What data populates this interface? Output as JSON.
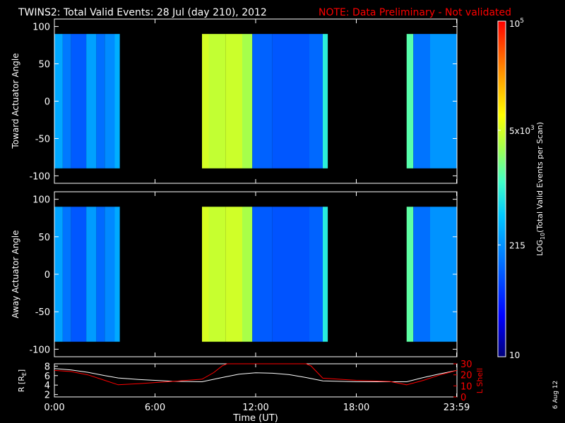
{
  "title": "TWINS2: Total Valid Events: 28 Jul (day 210), 2012",
  "note": "NOTE: Data Preliminary - Not validated",
  "side_date": "6 Aug 12",
  "colors": {
    "background": "#000000",
    "text": "#ffffff",
    "note": "#ff0000",
    "r_line": "#ffffff",
    "lshell_line": "#ff0000"
  },
  "chart_data": [
    {
      "type": "heatmap",
      "ylabel": "Toward Actuator Angle",
      "ylim": [
        -110,
        110
      ],
      "yticks": [
        100,
        50,
        0,
        -50,
        -100
      ],
      "data_y_range": [
        -90,
        90
      ],
      "x_range_hours": [
        0,
        24
      ],
      "columns": [
        {
          "from": 0.0,
          "to": 0.5,
          "value": 300
        },
        {
          "from": 0.5,
          "to": 1.0,
          "value": 150
        },
        {
          "from": 1.0,
          "to": 1.9,
          "value": 100
        },
        {
          "from": 1.9,
          "to": 2.5,
          "value": 270
        },
        {
          "from": 2.5,
          "to": 3.0,
          "value": 130
        },
        {
          "from": 3.0,
          "to": 3.6,
          "value": 200
        },
        {
          "from": 3.6,
          "to": 3.9,
          "value": 330
        },
        {
          "from": 8.8,
          "to": 9.2,
          "value": 5000
        },
        {
          "from": 9.2,
          "to": 10.2,
          "value": 4200
        },
        {
          "from": 10.2,
          "to": 11.2,
          "value": 4600
        },
        {
          "from": 11.2,
          "to": 11.8,
          "value": 3200
        },
        {
          "from": 11.8,
          "to": 13.0,
          "value": 110
        },
        {
          "from": 13.0,
          "to": 15.2,
          "value": 95
        },
        {
          "from": 15.2,
          "to": 16.0,
          "value": 120
        },
        {
          "from": 16.0,
          "to": 16.3,
          "value": 900
        },
        {
          "from": 21.0,
          "to": 21.4,
          "value": 1500
        },
        {
          "from": 21.4,
          "to": 22.4,
          "value": 140
        },
        {
          "from": 22.4,
          "to": 24.0,
          "value": 230
        }
      ]
    },
    {
      "type": "heatmap",
      "ylabel": "Away Actuator Angle",
      "ylim": [
        -110,
        110
      ],
      "yticks": [
        100,
        50,
        0,
        -50,
        -100
      ],
      "data_y_range": [
        -90,
        90
      ],
      "x_range_hours": [
        0,
        24
      ],
      "columns": [
        {
          "from": 0.0,
          "to": 0.5,
          "value": 280
        },
        {
          "from": 0.5,
          "to": 1.0,
          "value": 140
        },
        {
          "from": 1.0,
          "to": 1.9,
          "value": 95
        },
        {
          "from": 1.9,
          "to": 2.5,
          "value": 250
        },
        {
          "from": 2.5,
          "to": 3.0,
          "value": 120
        },
        {
          "from": 3.0,
          "to": 3.6,
          "value": 190
        },
        {
          "from": 3.6,
          "to": 3.9,
          "value": 310
        },
        {
          "from": 8.8,
          "to": 9.2,
          "value": 5200
        },
        {
          "from": 9.2,
          "to": 10.2,
          "value": 4400
        },
        {
          "from": 10.2,
          "to": 11.2,
          "value": 4800
        },
        {
          "from": 11.2,
          "to": 11.8,
          "value": 3300
        },
        {
          "from": 11.8,
          "to": 13.0,
          "value": 100
        },
        {
          "from": 13.0,
          "to": 15.2,
          "value": 90
        },
        {
          "from": 15.2,
          "to": 16.0,
          "value": 110
        },
        {
          "from": 16.0,
          "to": 16.3,
          "value": 850
        },
        {
          "from": 21.0,
          "to": 21.4,
          "value": 1600
        },
        {
          "from": 21.4,
          "to": 22.4,
          "value": 130
        },
        {
          "from": 22.4,
          "to": 24.0,
          "value": 220
        }
      ]
    },
    {
      "type": "line",
      "xlabel": "Time (UT)",
      "xticks": [
        "0:00",
        "6:00",
        "12:00",
        "18:00",
        "23:59"
      ],
      "xtick_hours": [
        0,
        6,
        12,
        18,
        23.98
      ],
      "left_axis": {
        "label": "R [R",
        "label_sub": "E",
        "label_end": "]",
        "ylim": [
          1.5,
          8.5
        ],
        "ticks": [
          2,
          4,
          6,
          8
        ]
      },
      "right_axis": {
        "label": "L Shell",
        "ylim": [
          0,
          30
        ],
        "ticks": [
          0,
          10,
          20,
          30
        ]
      },
      "series": [
        {
          "axis": "left",
          "x": [
            0,
            1,
            2,
            3,
            3.8,
            5,
            6,
            7,
            8.8,
            10,
            11,
            12,
            13,
            14,
            15,
            16,
            18,
            20,
            21,
            22,
            23,
            24
          ],
          "y": [
            7.5,
            7.2,
            6.7,
            6.0,
            5.5,
            5.2,
            5.0,
            4.8,
            4.7,
            5.6,
            6.3,
            6.6,
            6.5,
            6.2,
            5.6,
            4.9,
            4.7,
            4.7,
            4.7,
            5.6,
            6.4,
            7.1
          ]
        },
        {
          "axis": "right",
          "x": [
            0,
            1,
            2,
            3,
            3.8,
            5,
            6,
            7,
            8.8,
            9.5,
            10,
            10.3,
            15,
            15.3,
            16,
            18,
            20,
            21,
            22,
            23,
            24
          ],
          "y": [
            24,
            23,
            20,
            15,
            11,
            12,
            13,
            14,
            16,
            22,
            28,
            32,
            32,
            28,
            17,
            15,
            14,
            11,
            15,
            20,
            24
          ]
        }
      ]
    }
  ],
  "colorbar": {
    "label_main": "LOG",
    "label_sub": "10",
    "label_rest": "(Total Valid Events per Scan)",
    "range": [
      10,
      100000
    ],
    "scale": "log",
    "ticks": [
      {
        "value": 100000,
        "base": "10",
        "exp": "5"
      },
      {
        "value": 5000,
        "base": "5x10",
        "exp": "3"
      },
      {
        "value": 215,
        "base": "215",
        "exp": ""
      },
      {
        "value": 10,
        "base": "10",
        "exp": ""
      }
    ]
  }
}
